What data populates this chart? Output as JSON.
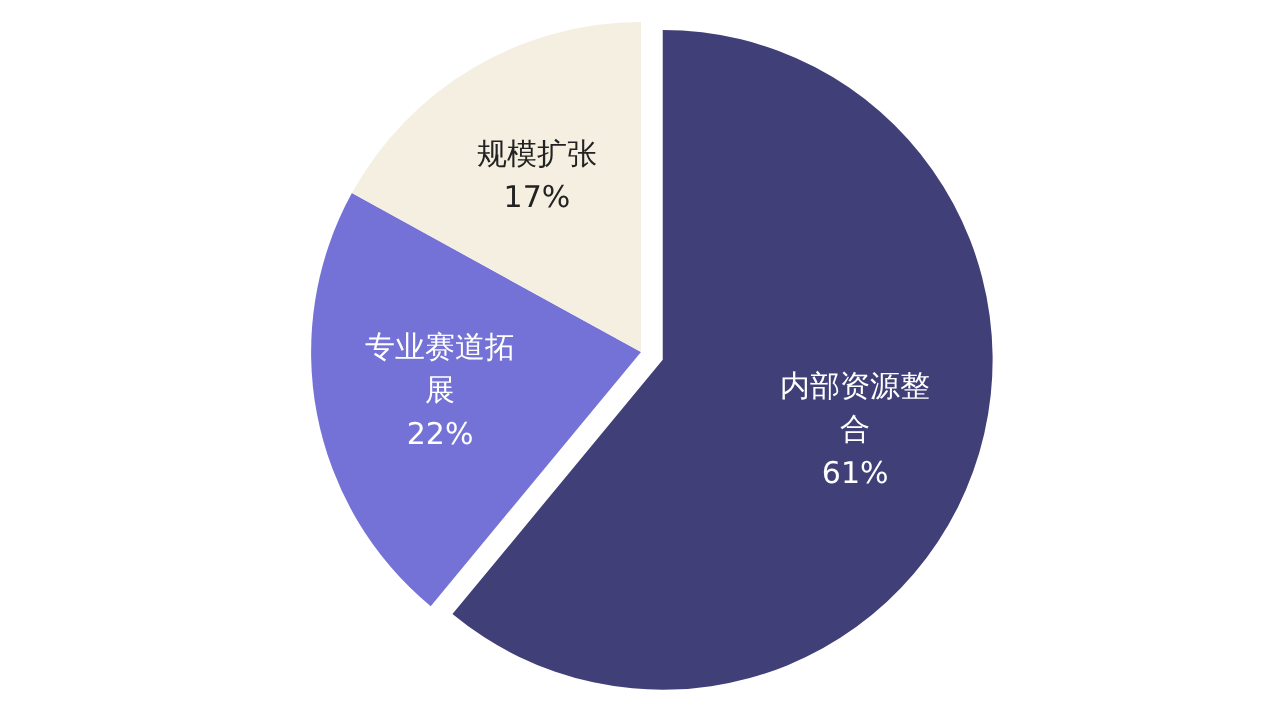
{
  "chart_data": {
    "type": "pie",
    "categories": [
      "内部资源整合",
      "专业赛道拓展",
      "规模扩张"
    ],
    "values": [
      61,
      22,
      17
    ],
    "colors": [
      "#403f78",
      "#7472d6",
      "#f5efe1"
    ],
    "value_labels": [
      "61%",
      "22%",
      "17%"
    ]
  }
}
